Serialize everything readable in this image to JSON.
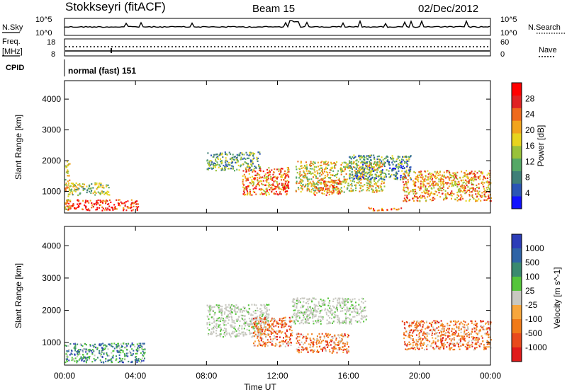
{
  "header": {
    "station": "Stokkseyri (fitACF)",
    "beam": "Beam 15",
    "date": "02/Dec/2012"
  },
  "status_panels": {
    "nsky": {
      "label": "N.Sky",
      "tick_top": "10^5",
      "tick_bottom": "10^0",
      "right_label": "N.Search",
      "right_tick_top": "10^5",
      "right_tick_bottom": "10^0"
    },
    "freq": {
      "label_line1": "Freq.",
      "label_line2": "[MHz]",
      "tick_top": "18",
      "tick_bottom": "8",
      "right_label": "Nave",
      "right_tick_top": "60",
      "right_tick_bottom": "0"
    },
    "cpid": {
      "label": "CPID",
      "text": "normal (fast) 151"
    }
  },
  "chart_data": [
    {
      "type": "heatmap",
      "name": "power",
      "ylabel": "Slant Range [km]",
      "ylim": [
        300,
        4600
      ],
      "y_ticks": [
        "1000",
        "2000",
        "3000",
        "4000"
      ],
      "x_ticks": [
        "00:00",
        "04:00",
        "08:00",
        "12:00",
        "16:00",
        "20:00",
        "00:00"
      ],
      "xlim_hours": [
        0,
        24
      ],
      "colorbar": {
        "label": "Power [dB]",
        "ticks": [
          "4",
          "8",
          "12",
          "16",
          "20",
          "24",
          "28"
        ],
        "range": [
          0,
          32
        ],
        "colors": [
          "#1111ff",
          "#2b55b5",
          "#3f7f78",
          "#55a866",
          "#99c23a",
          "#e7d41e",
          "#f2a41c",
          "#ee6a1c",
          "#e02222",
          "#ff0000"
        ]
      },
      "regions": [
        {
          "t": [
            0.0,
            4.2
          ],
          "r": [
            400,
            750
          ],
          "level": 0.85
        },
        {
          "t": [
            0.0,
            0.3
          ],
          "r": [
            400,
            2000
          ],
          "level": 0.55
        },
        {
          "t": [
            0.3,
            2.5
          ],
          "r": [
            900,
            1300
          ],
          "level": 0.45
        },
        {
          "t": [
            8.0,
            11.0
          ],
          "r": [
            1700,
            2300
          ],
          "level": 0.35
        },
        {
          "t": [
            10.0,
            12.6
          ],
          "r": [
            900,
            1800
          ],
          "level": 0.7
        },
        {
          "t": [
            12.2,
            12.6
          ],
          "r": [
            1000,
            1500
          ],
          "level": 0.9
        },
        {
          "t": [
            13.0,
            18.0
          ],
          "r": [
            1000,
            2000
          ],
          "level": 0.55
        },
        {
          "t": [
            14.0,
            15.5
          ],
          "r": [
            900,
            1400
          ],
          "level": 0.75
        },
        {
          "t": [
            16.0,
            19.5
          ],
          "r": [
            1400,
            2200
          ],
          "level": 0.3
        },
        {
          "t": [
            19.0,
            24.0
          ],
          "r": [
            700,
            1700
          ],
          "level": 0.65
        },
        {
          "t": [
            17.0,
            19.0
          ],
          "r": [
            400,
            500
          ],
          "level": 0.75
        }
      ]
    },
    {
      "type": "heatmap",
      "name": "velocity",
      "ylabel": "Slant Range [km]",
      "ylim": [
        300,
        4600
      ],
      "y_ticks": [
        "1000",
        "2000",
        "3000",
        "4000"
      ],
      "x_ticks": [
        "00:00",
        "04:00",
        "08:00",
        "12:00",
        "16:00",
        "20:00",
        "00:00"
      ],
      "xlabel": "Time UT",
      "xlim_hours": [
        0,
        24
      ],
      "colorbar": {
        "label": "Velocity [m s^-1]",
        "ticks": [
          "1000",
          "500",
          "100",
          "25",
          "-25",
          "-100",
          "-500",
          "-1000"
        ],
        "colors": [
          "#2c3db8",
          "#2f64a6",
          "#3a8a6f",
          "#55c43b",
          "#c8c8c0",
          "#f7a63c",
          "#f07a18",
          "#e84a1c",
          "#e01a1a"
        ]
      },
      "regions": [
        {
          "t": [
            0.0,
            4.5
          ],
          "r": [
            400,
            1000
          ],
          "class": "positive"
        },
        {
          "t": [
            8.0,
            11.5
          ],
          "r": [
            1200,
            2200
          ],
          "class": "ground-scatter"
        },
        {
          "t": [
            10.5,
            12.8
          ],
          "r": [
            900,
            1800
          ],
          "class": "negative"
        },
        {
          "t": [
            12.8,
            17.0
          ],
          "r": [
            1600,
            2400
          ],
          "class": "ground-scatter"
        },
        {
          "t": [
            13.0,
            16.0
          ],
          "r": [
            700,
            1300
          ],
          "class": "negative"
        },
        {
          "t": [
            19.0,
            24.0
          ],
          "r": [
            800,
            1700
          ],
          "class": "negative"
        }
      ]
    }
  ]
}
